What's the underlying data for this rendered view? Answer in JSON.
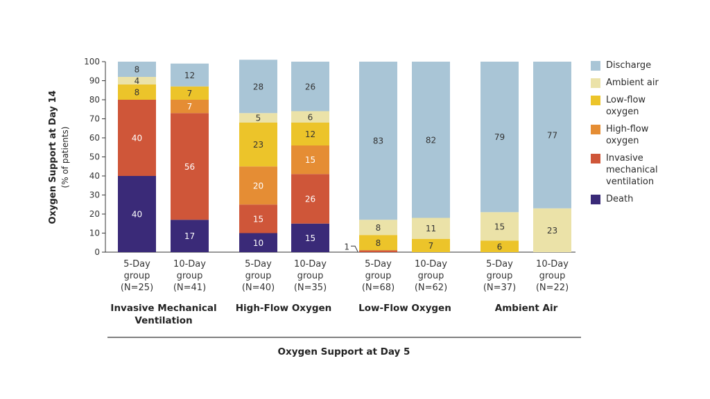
{
  "chart_data": {
    "type": "bar",
    "stacked": true,
    "ylabel": "Oxygen Support at Day 14",
    "ylabel_sub": "(% of patients)",
    "xlabel": "Oxygen Support at Day 5",
    "ylim": [
      0,
      100
    ],
    "yticks": [
      0,
      10,
      20,
      30,
      40,
      50,
      60,
      70,
      80,
      90,
      100
    ],
    "stack_order": [
      "Death",
      "Invasive mechanical ventilation",
      "High-flow oxygen",
      "Low-flow oxygen",
      "Ambient air",
      "Discharge"
    ],
    "legend": [
      {
        "name": "Discharge",
        "color": "#a9c5d6"
      },
      {
        "name": "Ambient air",
        "color": "#ebe2a8"
      },
      {
        "name": "Low-flow oxygen",
        "color": "#ecc42a"
      },
      {
        "name": "High-flow oxygen",
        "color": "#e58d34"
      },
      {
        "name": "Invasive mechanical ventilation",
        "color": "#cf5639"
      },
      {
        "name": "Death",
        "color": "#3a2a78"
      }
    ],
    "groups": [
      {
        "label": "Invasive Mechanical Ventilation",
        "bars": [
          {
            "label": "5-Day group (N=25)",
            "values": {
              "Death": 40,
              "Invasive mechanical ventilation": 40,
              "High-flow oxygen": 0,
              "Low-flow oxygen": 8,
              "Ambient air": 4,
              "Discharge": 8
            }
          },
          {
            "label": "10-Day group (N=41)",
            "values": {
              "Death": 17,
              "Invasive mechanical ventilation": 56,
              "High-flow oxygen": 7,
              "Low-flow oxygen": 7,
              "Ambient air": 0,
              "Discharge": 12
            }
          }
        ]
      },
      {
        "label": "High-Flow Oxygen",
        "bars": [
          {
            "label": "5-Day group (N=40)",
            "values": {
              "Death": 10,
              "Invasive mechanical ventilation": 15,
              "High-flow oxygen": 20,
              "Low-flow oxygen": 23,
              "Ambient air": 5,
              "Discharge": 28
            }
          },
          {
            "label": "10-Day group (N=35)",
            "values": {
              "Death": 15,
              "Invasive mechanical ventilation": 26,
              "High-flow oxygen": 15,
              "Low-flow oxygen": 12,
              "Ambient air": 6,
              "Discharge": 26
            }
          }
        ]
      },
      {
        "label": "Low-Flow Oxygen",
        "bars": [
          {
            "label": "5-Day group (N=68)",
            "values": {
              "Death": 0,
              "Invasive mechanical ventilation": 1,
              "High-flow oxygen": 0,
              "Low-flow oxygen": 8,
              "Ambient air": 8,
              "Discharge": 83
            }
          },
          {
            "label": "10-Day group (N=62)",
            "values": {
              "Death": 0,
              "Invasive mechanical ventilation": 0,
              "High-flow oxygen": 0,
              "Low-flow oxygen": 7,
              "Ambient air": 11,
              "Discharge": 82
            }
          }
        ]
      },
      {
        "label": "Ambient Air",
        "bars": [
          {
            "label": "5-Day group (N=37)",
            "values": {
              "Death": 0,
              "Invasive mechanical ventilation": 0,
              "High-flow oxygen": 0,
              "Low-flow oxygen": 6,
              "Ambient air": 15,
              "Discharge": 79
            }
          },
          {
            "label": "10-Day group (N=22)",
            "values": {
              "Death": 0,
              "Invasive mechanical ventilation": 0,
              "High-flow oxygen": 0,
              "Low-flow oxygen": 0,
              "Ambient air": 23,
              "Discharge": 77
            }
          }
        ]
      }
    ]
  },
  "legend_labels": {
    "discharge": "Discharge",
    "ambient_air": "Ambient air",
    "low_flow": "Low-flow oxygen",
    "high_flow": "High-flow oxygen",
    "imv": "Invasive mechanical ventilation",
    "death": "Death"
  }
}
